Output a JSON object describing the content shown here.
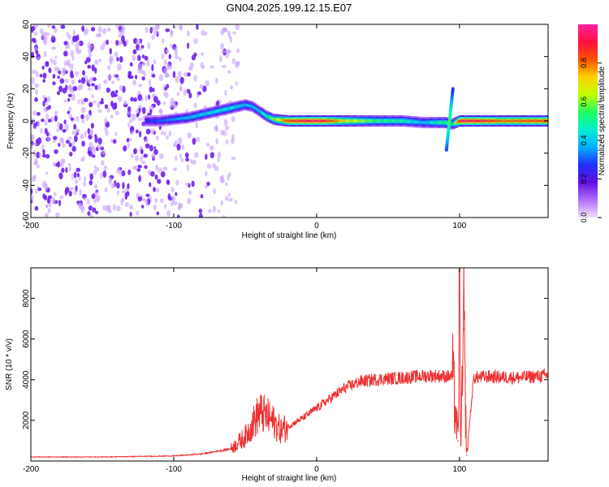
{
  "title": "GN04.2025.199.12.15.E07",
  "chart_data": [
    {
      "type": "heatmap",
      "xlabel": "Height of straight line (km)",
      "ylabel": "Frequency (Hz)",
      "xlim": [
        -200,
        162
      ],
      "ylim": [
        -60,
        60
      ],
      "x_ticks": [
        -200,
        -100,
        0,
        100
      ],
      "y_ticks": [
        -60,
        -40,
        -20,
        0,
        20,
        40,
        60
      ],
      "colorbar": {
        "label": "Normalized spectral amplitude",
        "range": [
          0.0,
          1.0
        ],
        "ticks": [
          "0.0",
          "0.2",
          "0.4",
          "0.6",
          "0.8"
        ],
        "colors": [
          "#f0e0ff",
          "#b070ff",
          "#6010e0",
          "#2030ff",
          "#00b0ff",
          "#00f0d0",
          "#20ff60",
          "#c0ff00",
          "#ffd000",
          "#ff5000",
          "#ff1040",
          "#ff20a0"
        ]
      },
      "trace": {
        "x": [
          -120,
          -110,
          -100,
          -90,
          -80,
          -70,
          -60,
          -50,
          -45,
          -40,
          -35,
          -30,
          -20,
          -10,
          0,
          20,
          40,
          60,
          75,
          90,
          95,
          100,
          115,
          130,
          162
        ],
        "freq": [
          0,
          0,
          1,
          2,
          4,
          6,
          8,
          10,
          9,
          6,
          3,
          1,
          0,
          0,
          0,
          0,
          0,
          0,
          -1,
          -1,
          -2,
          0,
          0,
          0,
          0
        ],
        "amplitude": [
          0.25,
          0.3,
          0.35,
          0.4,
          0.42,
          0.45,
          0.45,
          0.4,
          0.4,
          0.42,
          0.5,
          0.6,
          0.85,
          0.9,
          0.95,
          0.7,
          0.55,
          0.5,
          0.4,
          0.55,
          0.45,
          0.95,
          0.9,
          0.8,
          0.85
        ]
      },
      "noise_region_x": [
        -200,
        -55
      ]
    },
    {
      "type": "line",
      "xlabel": "Height of straight line (km)",
      "ylabel": "SNR (10 * v/v)",
      "xlim": [
        -200,
        162
      ],
      "ylim": [
        0,
        9500
      ],
      "x_ticks": [
        -200,
        -100,
        0,
        100
      ],
      "y_ticks": [
        2000,
        4000,
        6000,
        8000
      ],
      "color": "#f03030",
      "x": [
        -200,
        -150,
        -100,
        -80,
        -60,
        -50,
        -45,
        -40,
        -35,
        -30,
        -25,
        -20,
        -10,
        0,
        10,
        20,
        30,
        40,
        60,
        80,
        95,
        99,
        100,
        101,
        103,
        105,
        110,
        120,
        140,
        162
      ],
      "y": [
        200,
        200,
        250,
        350,
        600,
        1200,
        1800,
        2400,
        2200,
        1900,
        1500,
        1700,
        2100,
        2600,
        3100,
        3600,
        3900,
        4000,
        4100,
        4200,
        4150,
        1000,
        8800,
        800,
        6500,
        300,
        4100,
        4150,
        4100,
        4200
      ]
    }
  ]
}
